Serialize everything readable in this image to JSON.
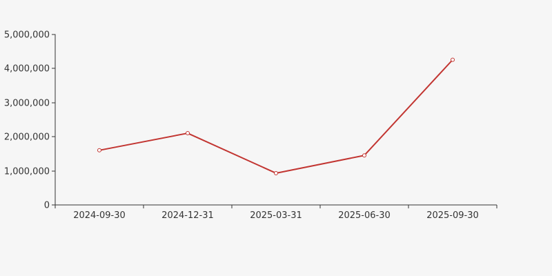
{
  "page": {
    "background_color": "#f6f6f6"
  },
  "chart_data": {
    "type": "line",
    "title": "",
    "xlabel": "",
    "ylabel": "",
    "categories": [
      "2024-09-30",
      "2024-12-31",
      "2025-03-31",
      "2025-06-30",
      "2025-09-30"
    ],
    "series": [
      {
        "name": "value",
        "values": [
          1600000,
          2100000,
          930000,
          1450000,
          4250000
        ],
        "color": "#c23531",
        "marker": "open-circle"
      }
    ],
    "ylim": [
      0,
      5000000
    ],
    "y_ticks": [
      0,
      1000000,
      2000000,
      3000000,
      4000000,
      5000000
    ],
    "y_tick_labels": [
      "0",
      "1,000,000",
      "2,000,000",
      "3,000,000",
      "4,000,000",
      "5,000,000"
    ],
    "grid": false,
    "legend": false,
    "x_axis_boundary_ticks": true,
    "axis_color": "#333333",
    "label_color": "#333333"
  }
}
